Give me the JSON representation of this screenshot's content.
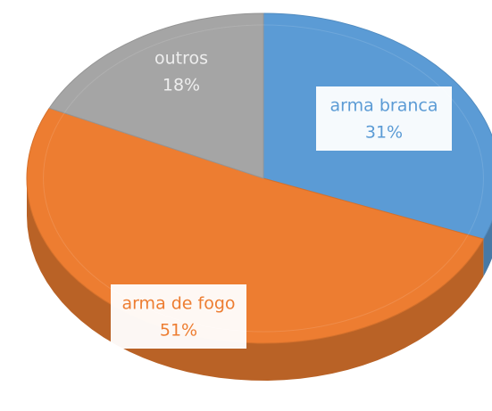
{
  "chart_data": {
    "type": "pie",
    "categories": [
      "arma branca",
      "arma de fogo",
      "outros"
    ],
    "values": [
      31,
      51,
      18
    ],
    "value_labels": [
      "31%",
      "51%",
      "18%"
    ],
    "colors": [
      "#5b9bd5",
      "#ed7d31",
      "#a5a5a5"
    ]
  }
}
